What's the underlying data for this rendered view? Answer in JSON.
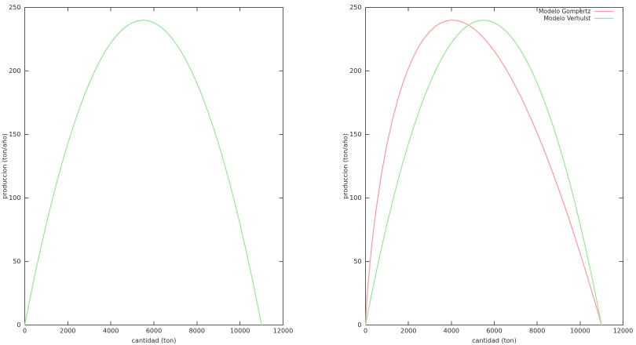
{
  "page": {
    "background": "#ffffff",
    "border_color": "#5a5a5a",
    "text_color": "#2a2a2a"
  },
  "chart_data": [
    {
      "type": "line",
      "title": "",
      "xlabel": "cantidad (ton)",
      "ylabel": "produccion (ton/año)",
      "xlim": [
        0,
        12000
      ],
      "ylim": [
        0,
        250
      ],
      "xticks": [
        0,
        2000,
        4000,
        6000,
        8000,
        10000,
        12000
      ],
      "yticks": [
        0,
        50,
        100,
        150,
        200,
        250
      ],
      "grid": false,
      "legend": null,
      "series": [
        {
          "name": "",
          "color": "#99e699",
          "points": [
            [
              0,
              0
            ],
            [
              250,
              21.3
            ],
            [
              500,
              41.7
            ],
            [
              750,
              61
            ],
            [
              1000,
              79.3
            ],
            [
              1250,
              96.7
            ],
            [
              1500,
              113.1
            ],
            [
              1750,
              128.4
            ],
            [
              2000,
              142.8
            ],
            [
              2250,
              156.2
            ],
            [
              2500,
              168.6
            ],
            [
              2750,
              180
            ],
            [
              3000,
              190.4
            ],
            [
              3250,
              199.8
            ],
            [
              3500,
              208.3
            ],
            [
              3750,
              215.7
            ],
            [
              4000,
              222.1
            ],
            [
              4250,
              227.6
            ],
            [
              4500,
              232.1
            ],
            [
              4750,
              235.5
            ],
            [
              5000,
              238
            ],
            [
              5250,
              239.5
            ],
            [
              5500,
              240
            ],
            [
              5750,
              239.5
            ],
            [
              6000,
              238
            ],
            [
              6250,
              235.5
            ],
            [
              6500,
              232.1
            ],
            [
              6750,
              227.6
            ],
            [
              7000,
              222.1
            ],
            [
              7250,
              215.7
            ],
            [
              7500,
              208.3
            ],
            [
              7750,
              199.8
            ],
            [
              8000,
              190.4
            ],
            [
              8250,
              180
            ],
            [
              8500,
              168.6
            ],
            [
              8750,
              156.2
            ],
            [
              9000,
              142.8
            ],
            [
              9250,
              128.4
            ],
            [
              9500,
              113.1
            ],
            [
              9750,
              96.7
            ],
            [
              10000,
              79.3
            ],
            [
              10250,
              61
            ],
            [
              10500,
              41.7
            ],
            [
              10750,
              21.3
            ],
            [
              11000,
              0
            ]
          ]
        }
      ]
    },
    {
      "type": "line",
      "title": "",
      "xlabel": "cantidad (ton)",
      "ylabel": "produccion (ton/año)",
      "xlim": [
        0,
        12000
      ],
      "ylim": [
        0,
        250
      ],
      "xticks": [
        0,
        2000,
        4000,
        6000,
        8000,
        10000,
        12000
      ],
      "yticks": [
        0,
        50,
        100,
        150,
        200,
        250
      ],
      "grid": false,
      "legend": {
        "position": "top-right",
        "entries": [
          "Modelo Gompertz",
          "Modelo Verhulst"
        ]
      },
      "series": [
        {
          "name": "Modelo Gompertz",
          "color": "#ff9999",
          "points": [
            [
              0,
              0
            ],
            [
              50,
              16
            ],
            [
              100,
              27.9
            ],
            [
              200,
              47.5
            ],
            [
              300,
              64.1
            ],
            [
              400,
              78.6
            ],
            [
              500,
              91.7
            ],
            [
              750,
              119.5
            ],
            [
              1000,
              142.2
            ],
            [
              1250,
              161.2
            ],
            [
              1500,
              177.3
            ],
            [
              1750,
              190.8
            ],
            [
              2000,
              202.2
            ],
            [
              2250,
              211.8
            ],
            [
              2500,
              219.7
            ],
            [
              2750,
              226.1
            ],
            [
              3000,
              231.2
            ],
            [
              3250,
              235
            ],
            [
              3500,
              237.7
            ],
            [
              3750,
              239.3
            ],
            [
              4000,
              240
            ],
            [
              4250,
              239.7
            ],
            [
              4500,
              238.6
            ],
            [
              4750,
              236.6
            ],
            [
              5000,
              233.8
            ],
            [
              5250,
              230.4
            ],
            [
              5500,
              226.1
            ],
            [
              5750,
              221.2
            ],
            [
              6000,
              215.7
            ],
            [
              6250,
              209.5
            ],
            [
              6500,
              202.9
            ],
            [
              6750,
              195.5
            ],
            [
              7000,
              187.6
            ],
            [
              7250,
              179.3
            ],
            [
              7500,
              170.4
            ],
            [
              7750,
              161
            ],
            [
              8000,
              151.1
            ],
            [
              8250,
              140.8
            ],
            [
              8500,
              130
            ],
            [
              8750,
              118.7
            ],
            [
              9000,
              107.1
            ],
            [
              9250,
              95.1
            ],
            [
              9500,
              82.6
            ],
            [
              9750,
              69.7
            ],
            [
              10000,
              56.5
            ],
            [
              10250,
              42.9
            ],
            [
              10500,
              29
            ],
            [
              10750,
              14.7
            ],
            [
              11000,
              0
            ]
          ]
        },
        {
          "name": "Modelo Verhulst",
          "color": "#99e699",
          "points": [
            [
              0,
              0
            ],
            [
              250,
              21.3
            ],
            [
              500,
              41.7
            ],
            [
              750,
              61
            ],
            [
              1000,
              79.3
            ],
            [
              1250,
              96.7
            ],
            [
              1500,
              113.1
            ],
            [
              1750,
              128.4
            ],
            [
              2000,
              142.8
            ],
            [
              2250,
              156.2
            ],
            [
              2500,
              168.6
            ],
            [
              2750,
              180
            ],
            [
              3000,
              190.4
            ],
            [
              3250,
              199.8
            ],
            [
              3500,
              208.3
            ],
            [
              3750,
              215.7
            ],
            [
              4000,
              222.1
            ],
            [
              4250,
              227.6
            ],
            [
              4500,
              232.1
            ],
            [
              4750,
              235.5
            ],
            [
              5000,
              238
            ],
            [
              5250,
              239.5
            ],
            [
              5500,
              240
            ],
            [
              5750,
              239.5
            ],
            [
              6000,
              238
            ],
            [
              6250,
              235.5
            ],
            [
              6500,
              232.1
            ],
            [
              6750,
              227.6
            ],
            [
              7000,
              222.1
            ],
            [
              7250,
              215.7
            ],
            [
              7500,
              208.3
            ],
            [
              7750,
              199.8
            ],
            [
              8000,
              190.4
            ],
            [
              8250,
              180
            ],
            [
              8500,
              168.6
            ],
            [
              8750,
              156.2
            ],
            [
              9000,
              142.8
            ],
            [
              9250,
              128.4
            ],
            [
              9500,
              113.1
            ],
            [
              9750,
              96.7
            ],
            [
              10000,
              79.3
            ],
            [
              10250,
              61
            ],
            [
              10500,
              41.7
            ],
            [
              10750,
              21.3
            ],
            [
              11000,
              0
            ]
          ]
        }
      ]
    }
  ]
}
